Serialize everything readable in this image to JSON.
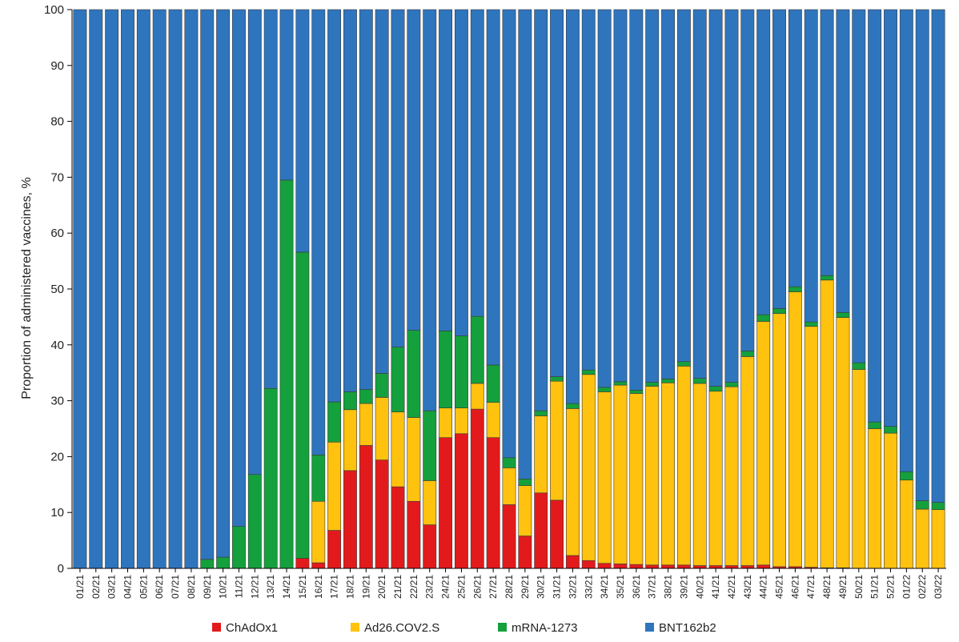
{
  "chart_data": {
    "type": "bar",
    "stacked": true,
    "ylabel": "Proportion of administered vaccines, %",
    "xlabel": "",
    "ylim": [
      0,
      100
    ],
    "yticks": [
      "0",
      "10",
      "20",
      "30",
      "40",
      "50",
      "60",
      "70",
      "80",
      "90",
      "100"
    ],
    "grid": false,
    "legend_position": "bottom",
    "categories": [
      "01/21",
      "02/21",
      "03/21",
      "04/21",
      "05/21",
      "06/21",
      "07/21",
      "08/21",
      "09/21",
      "10/21",
      "11/21",
      "12/21",
      "13/21",
      "14/21",
      "15/21",
      "16/21",
      "17/21",
      "18/21",
      "19/21",
      "20/21",
      "21/21",
      "22/21",
      "23/21",
      "24/21",
      "25/21",
      "26/21",
      "27/21",
      "28/21",
      "29/21",
      "30/21",
      "31/21",
      "32/21",
      "33/21",
      "34/21",
      "35/21",
      "36/21",
      "37/21",
      "38/21",
      "39/21",
      "40/21",
      "41/21",
      "42/21",
      "43/21",
      "44/21",
      "45/21",
      "46/21",
      "47/21",
      "48/21",
      "49/21",
      "50/21",
      "51/21",
      "52/21",
      "01/22",
      "02/22",
      "03/22"
    ],
    "series": [
      {
        "name": "ChAdOx1",
        "color": "#e31a1c",
        "values": [
          0,
          0,
          0,
          0,
          0,
          0,
          0,
          0,
          0,
          0,
          0,
          0,
          0,
          0,
          1.8,
          1,
          6.8,
          17.5,
          22,
          19.4,
          14.6,
          12,
          7.8,
          23.4,
          24.1,
          28.5,
          23.4,
          11.4,
          5.8,
          13.5,
          12.2,
          2.3,
          1.4,
          0.9,
          0.8,
          0.7,
          0.6,
          0.6,
          0.6,
          0.5,
          0.5,
          0.5,
          0.5,
          0.6,
          0.3,
          0.3,
          0.2,
          0.1,
          0.1,
          0,
          0,
          0,
          0,
          0,
          0
        ]
      },
      {
        "name": "Ad26.COV2.S",
        "color": "#ffc20e",
        "values": [
          0,
          0,
          0,
          0,
          0,
          0,
          0,
          0,
          0,
          0,
          0,
          0,
          0,
          0,
          0,
          11,
          15.8,
          10.9,
          7.5,
          11.2,
          13.4,
          15,
          7.9,
          5.3,
          4.6,
          4.6,
          6.3,
          6.6,
          9,
          13.8,
          21.3,
          26.3,
          33.3,
          30.7,
          32,
          30.6,
          32,
          32.6,
          35.6,
          32.6,
          31.2,
          32,
          37.4,
          43.6,
          45.3,
          49.2,
          43.1,
          51.5,
          44.8,
          35.6,
          25,
          24.2,
          15.8,
          10.6,
          10.5
        ]
      },
      {
        "name": "mRNA-1273",
        "color": "#14a03c",
        "values": [
          0,
          0,
          0,
          0,
          0,
          0,
          0,
          0,
          1.6,
          2,
          7.5,
          16.8,
          32.2,
          69.5,
          54.8,
          8.3,
          7.2,
          3.2,
          2.5,
          4.3,
          11.6,
          15.6,
          12.5,
          13.8,
          12.9,
          12,
          6.7,
          1.8,
          1.2,
          0.9,
          0.8,
          0.9,
          0.8,
          0.8,
          0.6,
          0.6,
          0.7,
          0.7,
          0.8,
          0.9,
          0.9,
          0.8,
          1,
          1.2,
          0.9,
          0.9,
          0.8,
          0.8,
          0.9,
          1.2,
          1.2,
          1.2,
          1.5,
          1.5,
          1.3
        ]
      },
      {
        "name": "BNT162b2",
        "color": "#2e75bd",
        "values": [
          100,
          100,
          100,
          100,
          100,
          100,
          100,
          100,
          98.4,
          98,
          92.5,
          83.2,
          67.8,
          30.5,
          43.4,
          79.7,
          70.2,
          68.4,
          68,
          65.1,
          60.4,
          57.4,
          71.8,
          57.5,
          58.4,
          54.9,
          63.6,
          80.2,
          84,
          71.8,
          65.7,
          70.5,
          64.5,
          67.6,
          66.6,
          68.1,
          66.7,
          66.1,
          63,
          66,
          67.4,
          66.7,
          61.1,
          54.6,
          53.5,
          49.6,
          55.9,
          47.6,
          54.2,
          63.2,
          73.8,
          74.6,
          82.7,
          87.9,
          88.2
        ]
      }
    ]
  }
}
